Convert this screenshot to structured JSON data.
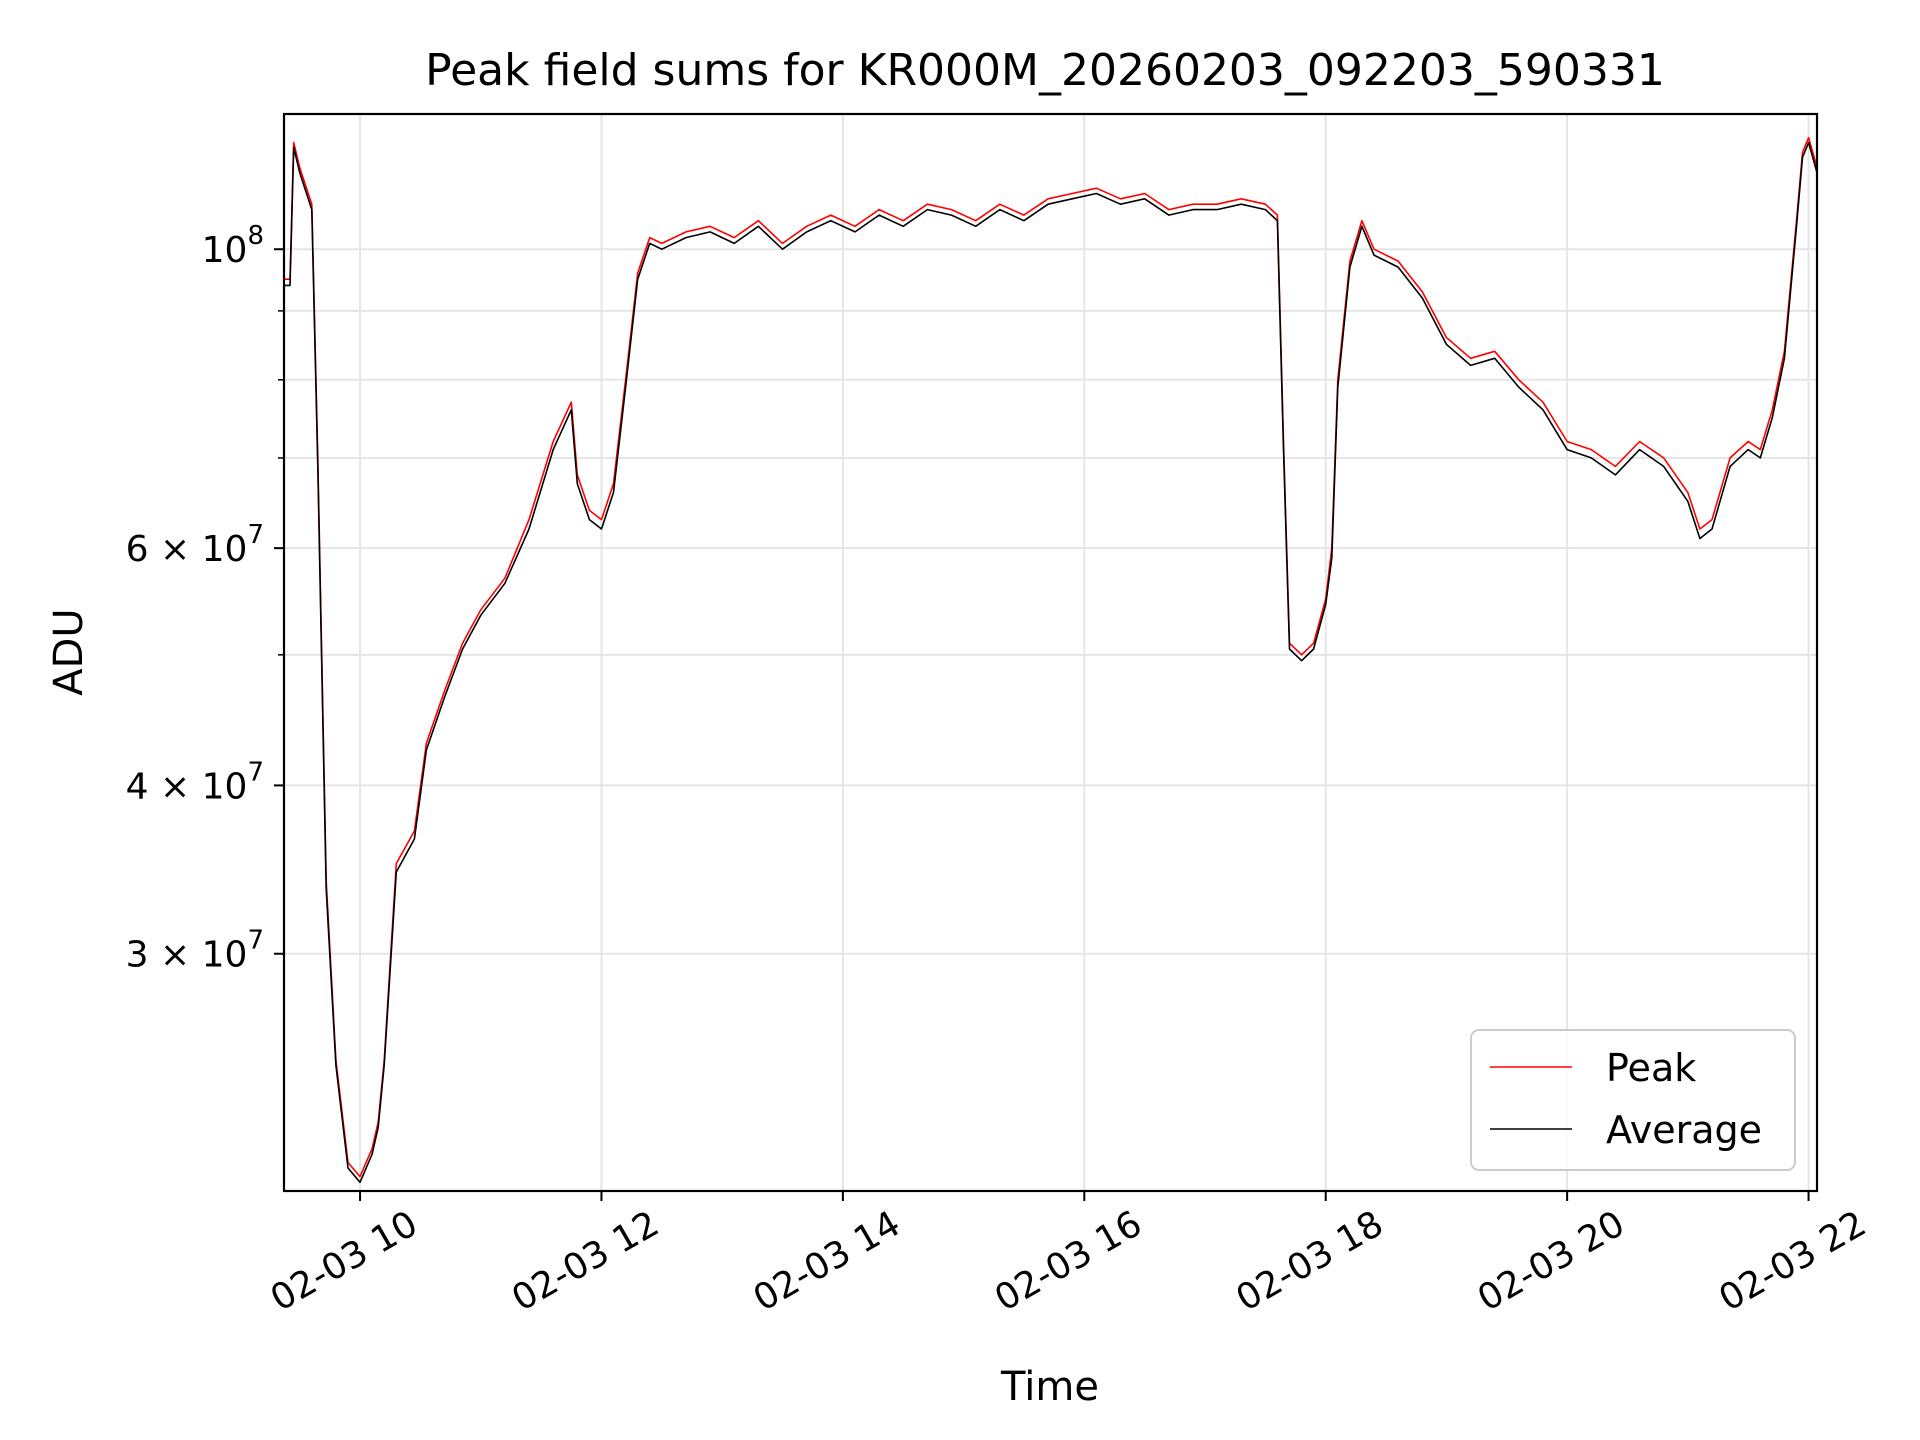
{
  "chart_data": {
    "type": "line",
    "title": "Peak field sums for KR000M_20260203_092203_590331",
    "xlabel": "Time",
    "ylabel": "ADU",
    "yscale": "log",
    "xlim_hours": [
      9.37,
      22.07
    ],
    "ylim": [
      20000000,
      126000000
    ],
    "grid": true,
    "legend_position": "lower right",
    "x_ticks": [
      {
        "value": 10,
        "label": "02-03 10"
      },
      {
        "value": 12,
        "label": "02-03 12"
      },
      {
        "value": 14,
        "label": "02-03 14"
      },
      {
        "value": 16,
        "label": "02-03 16"
      },
      {
        "value": 18,
        "label": "02-03 18"
      },
      {
        "value": 20,
        "label": "02-03 20"
      },
      {
        "value": 22,
        "label": "02-03 22"
      }
    ],
    "y_major_ticks": [
      {
        "value": 100000000,
        "base": "10",
        "exp": "8",
        "mant": ""
      },
      {
        "value": 60000000,
        "base": "× 10",
        "exp": "7",
        "mant": "6"
      },
      {
        "value": 40000000,
        "base": "× 10",
        "exp": "7",
        "mant": "4"
      },
      {
        "value": 30000000,
        "base": "× 10",
        "exp": "7",
        "mant": "3"
      }
    ],
    "y_minor_grid": [
      90000000,
      80000000,
      70000000,
      50000000
    ],
    "series": [
      {
        "name": "Peak",
        "color": "#ff0000",
        "x_hours": [
          9.37,
          9.42,
          9.45,
          9.5,
          9.6,
          9.65,
          9.72,
          9.8,
          9.9,
          10.0,
          10.1,
          10.15,
          10.2,
          10.3,
          10.45,
          10.55,
          10.7,
          10.85,
          11.0,
          11.2,
          11.4,
          11.6,
          11.75,
          11.8,
          11.9,
          12.0,
          12.1,
          12.2,
          12.3,
          12.4,
          12.5,
          12.7,
          12.9,
          13.1,
          13.3,
          13.5,
          13.7,
          13.9,
          14.1,
          14.3,
          14.5,
          14.7,
          14.9,
          15.1,
          15.3,
          15.5,
          15.7,
          15.9,
          16.1,
          16.3,
          16.5,
          16.7,
          16.9,
          17.1,
          17.3,
          17.5,
          17.6,
          17.65,
          17.7,
          17.8,
          17.9,
          18.0,
          18.05,
          18.1,
          18.2,
          18.3,
          18.4,
          18.6,
          18.8,
          19.0,
          19.2,
          19.4,
          19.6,
          19.8,
          20.0,
          20.2,
          20.4,
          20.6,
          20.8,
          21.0,
          21.1,
          21.2,
          21.35,
          21.5,
          21.6,
          21.7,
          21.8,
          21.9,
          21.95,
          22.0,
          22.07
        ],
        "values": [
          95000000,
          95000000,
          120000000,
          115000000,
          108000000,
          70000000,
          34000000,
          25000000,
          21000000,
          20500000,
          21500000,
          22500000,
          25000000,
          35000000,
          37000000,
          43000000,
          47000000,
          51000000,
          54000000,
          57000000,
          63000000,
          72000000,
          77000000,
          68000000,
          64000000,
          63000000,
          67000000,
          80000000,
          96000000,
          102000000,
          101000000,
          103000000,
          104000000,
          102000000,
          105000000,
          101000000,
          104000000,
          106000000,
          104000000,
          107000000,
          105000000,
          108000000,
          107000000,
          105000000,
          108000000,
          106000000,
          109000000,
          110000000,
          111000000,
          109000000,
          110000000,
          107000000,
          108000000,
          108000000,
          109000000,
          108000000,
          106000000,
          72000000,
          51000000,
          50000000,
          51000000,
          55000000,
          60000000,
          80000000,
          98000000,
          105000000,
          100000000,
          98000000,
          93000000,
          86000000,
          83000000,
          84000000,
          80000000,
          77000000,
          72000000,
          71000000,
          69000000,
          72000000,
          70000000,
          66000000,
          62000000,
          63000000,
          70000000,
          72000000,
          71000000,
          76000000,
          84000000,
          105000000,
          118000000,
          121000000,
          115000000
        ]
      },
      {
        "name": "Average",
        "color": "#000000",
        "x_hours": [
          9.37,
          9.42,
          9.45,
          9.5,
          9.6,
          9.65,
          9.72,
          9.8,
          9.9,
          10.0,
          10.1,
          10.15,
          10.2,
          10.3,
          10.45,
          10.55,
          10.7,
          10.85,
          11.0,
          11.2,
          11.4,
          11.6,
          11.75,
          11.8,
          11.9,
          12.0,
          12.1,
          12.2,
          12.3,
          12.4,
          12.5,
          12.7,
          12.9,
          13.1,
          13.3,
          13.5,
          13.7,
          13.9,
          14.1,
          14.3,
          14.5,
          14.7,
          14.9,
          15.1,
          15.3,
          15.5,
          15.7,
          15.9,
          16.1,
          16.3,
          16.5,
          16.7,
          16.9,
          17.1,
          17.3,
          17.5,
          17.6,
          17.65,
          17.7,
          17.8,
          17.9,
          18.0,
          18.05,
          18.1,
          18.2,
          18.3,
          18.4,
          18.6,
          18.8,
          19.0,
          19.2,
          19.4,
          19.6,
          19.8,
          20.0,
          20.2,
          20.4,
          20.6,
          20.8,
          21.0,
          21.1,
          21.2,
          21.35,
          21.5,
          21.6,
          21.7,
          21.8,
          21.9,
          21.95,
          22.0,
          22.07
        ],
        "values": [
          94000000,
          94000000,
          119000000,
          114000000,
          107000000,
          69000000,
          33500000,
          24800000,
          20800000,
          20300000,
          21300000,
          22300000,
          24800000,
          34500000,
          36500000,
          42500000,
          46500000,
          50500000,
          53500000,
          56500000,
          62000000,
          71000000,
          76000000,
          67000000,
          63000000,
          62000000,
          66000000,
          79000000,
          95000000,
          101000000,
          100000000,
          102000000,
          103000000,
          101000000,
          104000000,
          100000000,
          103000000,
          105000000,
          103000000,
          106000000,
          104000000,
          107000000,
          106000000,
          104000000,
          107000000,
          105000000,
          108000000,
          109000000,
          110000000,
          108000000,
          109000000,
          106000000,
          107000000,
          107000000,
          108000000,
          107000000,
          105000000,
          71000000,
          50500000,
          49500000,
          50500000,
          54500000,
          59000000,
          79000000,
          97000000,
          104000000,
          99000000,
          97000000,
          92000000,
          85000000,
          82000000,
          83000000,
          79000000,
          76000000,
          71000000,
          70000000,
          68000000,
          71000000,
          69000000,
          65000000,
          61000000,
          62000000,
          69000000,
          71000000,
          70000000,
          75000000,
          83000000,
          104000000,
          117000000,
          120000000,
          114000000
        ]
      }
    ]
  }
}
